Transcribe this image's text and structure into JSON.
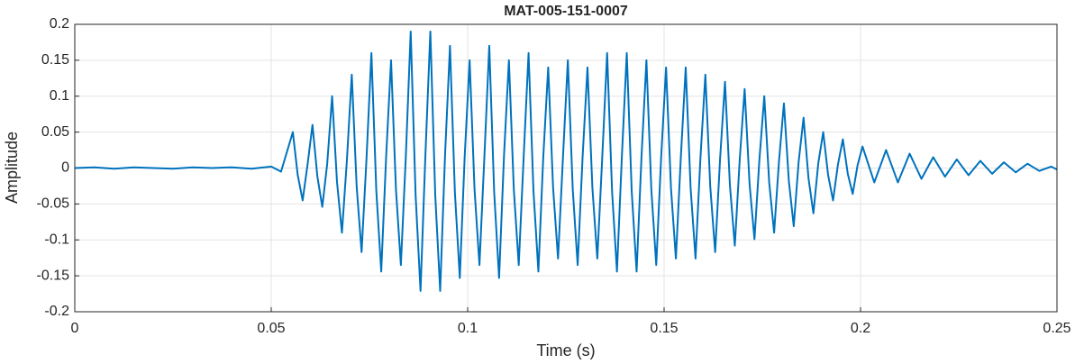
{
  "chart_data": {
    "type": "line",
    "title": "MAT-005-151-0007",
    "xlabel": "Time (s)",
    "ylabel": "Amplitude",
    "xlim": [
      0,
      0.25
    ],
    "xticks": [
      0,
      0.05,
      0.1,
      0.15,
      0.2,
      0.25
    ],
    "ylim": [
      -0.2,
      0.2
    ],
    "yticks": [
      -0.2,
      -0.15,
      -0.1,
      -0.05,
      0,
      0.05,
      0.1,
      0.15,
      0.2
    ],
    "grid": true,
    "series": [
      {
        "color": "#0072bd",
        "x": [
          0,
          0.005,
          0.01,
          0.015,
          0.02,
          0.025,
          0.03,
          0.035,
          0.04,
          0.045,
          0.05,
          0.0525,
          0.0555,
          0.05675,
          0.058,
          0.05925,
          0.0605,
          0.06175,
          0.063,
          0.06425,
          0.0655,
          0.06675,
          0.068,
          0.06925,
          0.0705,
          0.07175,
          0.073,
          0.07425,
          0.0755,
          0.07675,
          0.078,
          0.07925,
          0.0805,
          0.08175,
          0.083,
          0.08425,
          0.0855,
          0.08675,
          0.088,
          0.08925,
          0.0905,
          0.09175,
          0.093,
          0.09425,
          0.0955,
          0.09675,
          0.098,
          0.09925,
          0.1005,
          0.10175,
          0.103,
          0.10425,
          0.1055,
          0.10675,
          0.108,
          0.10925,
          0.1105,
          0.11175,
          0.113,
          0.11425,
          0.1155,
          0.11675,
          0.118,
          0.11925,
          0.1205,
          0.12175,
          0.123,
          0.12425,
          0.1255,
          0.12675,
          0.128,
          0.12925,
          0.1305,
          0.13175,
          0.133,
          0.13425,
          0.1355,
          0.13675,
          0.138,
          0.13925,
          0.1405,
          0.14175,
          0.143,
          0.14425,
          0.1455,
          0.14675,
          0.148,
          0.14925,
          0.1505,
          0.15175,
          0.153,
          0.15425,
          0.1555,
          0.15675,
          0.158,
          0.15925,
          0.1605,
          0.16175,
          0.163,
          0.16425,
          0.1655,
          0.16675,
          0.168,
          0.16925,
          0.1705,
          0.17175,
          0.173,
          0.17425,
          0.1755,
          0.17675,
          0.178,
          0.17925,
          0.1805,
          0.18175,
          0.183,
          0.18425,
          0.1855,
          0.18675,
          0.188,
          0.18925,
          0.1905,
          0.19175,
          0.193,
          0.19425,
          0.1955,
          0.19675,
          0.198,
          0.19925,
          0.2005,
          0.2035,
          0.2065,
          0.2095,
          0.2125,
          0.2155,
          0.2185,
          0.2215,
          0.2245,
          0.2275,
          0.2305,
          0.2335,
          0.2365,
          0.2395,
          0.2425,
          0.2455,
          0.2485,
          0.25
        ],
        "values": [
          0,
          0.001,
          -0.001,
          0.001,
          0,
          -0.001,
          0.001,
          0,
          0.001,
          -0.001,
          0.002,
          -0.005,
          0.05,
          -0.01,
          -0.045,
          0.005,
          0.06,
          -0.012,
          -0.054,
          0.006,
          0.1,
          -0.02,
          -0.09,
          0.01,
          0.13,
          -0.026,
          -0.117,
          0.013,
          0.16,
          -0.032,
          -0.144,
          0.016,
          0.15,
          -0.03,
          -0.135,
          0.015,
          0.19,
          -0.038,
          -0.171,
          0.019,
          0.19,
          -0.038,
          -0.171,
          0.019,
          0.17,
          -0.034,
          -0.153,
          0.017,
          0.15,
          -0.03,
          -0.135,
          0.015,
          0.17,
          -0.034,
          -0.153,
          0.017,
          0.15,
          -0.03,
          -0.135,
          0.015,
          0.16,
          -0.032,
          -0.144,
          0.016,
          0.14,
          -0.028,
          -0.126,
          0.014,
          0.15,
          -0.03,
          -0.135,
          0.015,
          0.14,
          -0.028,
          -0.126,
          0.014,
          0.16,
          -0.032,
          -0.144,
          0.016,
          0.16,
          -0.032,
          -0.144,
          0.016,
          0.15,
          -0.03,
          -0.135,
          0.015,
          0.14,
          -0.028,
          -0.126,
          0.014,
          0.14,
          -0.028,
          -0.126,
          0.014,
          0.13,
          -0.026,
          -0.117,
          0.013,
          0.12,
          -0.024,
          -0.108,
          0.012,
          0.11,
          -0.022,
          -0.099,
          0.011,
          0.1,
          -0.02,
          -0.09,
          0.01,
          0.09,
          -0.018,
          -0.081,
          0.009,
          0.07,
          -0.014,
          -0.063,
          0.007,
          0.05,
          -0.01,
          -0.045,
          0.005,
          0.04,
          -0.008,
          -0.036,
          0.004,
          0.03,
          -0.02,
          0.025,
          -0.02,
          0.02,
          -0.015,
          0.015,
          -0.012,
          0.012,
          -0.01,
          0.01,
          -0.008,
          0.008,
          -0.006,
          0.006,
          -0.004,
          0.002,
          -0.002
        ]
      }
    ]
  }
}
